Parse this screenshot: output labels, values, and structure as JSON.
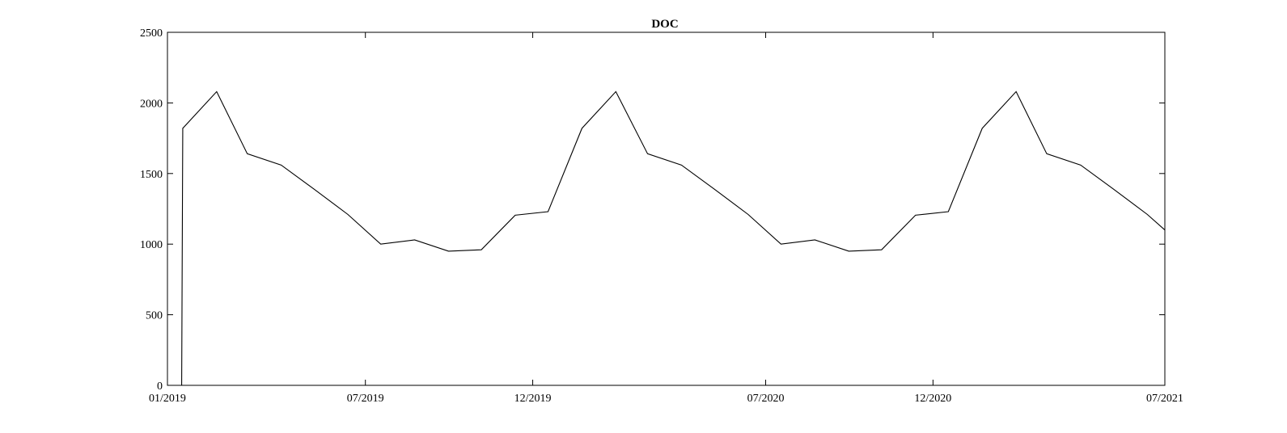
{
  "chart_data": {
    "type": "line",
    "title": "DOC",
    "xlabel": "",
    "ylabel": "",
    "grid": false,
    "ylim": [
      0,
      2500
    ],
    "xlim": [
      "2019-01-01",
      "2021-07-01"
    ],
    "y_ticks": [
      0,
      500,
      1000,
      1500,
      2000,
      2500
    ],
    "x_ticks": [
      {
        "date": "2019-01-01",
        "label": "01/2019"
      },
      {
        "date": "2019-07-01",
        "label": "07/2019"
      },
      {
        "date": "2019-12-01",
        "label": "12/2019"
      },
      {
        "date": "2020-07-01",
        "label": "07/2020"
      },
      {
        "date": "2020-12-01",
        "label": "12/2020"
      },
      {
        "date": "2021-07-01",
        "label": "07/2021"
      }
    ],
    "series": [
      {
        "color": "#000000",
        "points": [
          {
            "x": "2019-01-01",
            "y": 0
          },
          {
            "x": "2019-01-14",
            "y": 0
          },
          {
            "x": "2019-01-15",
            "y": 1820
          },
          {
            "x": "2019-02-15",
            "y": 2080
          },
          {
            "x": "2019-03-15",
            "y": 1640
          },
          {
            "x": "2019-04-15",
            "y": 1560
          },
          {
            "x": "2019-05-15",
            "y": 1390
          },
          {
            "x": "2019-06-15",
            "y": 1210
          },
          {
            "x": "2019-07-15",
            "y": 1000
          },
          {
            "x": "2019-08-15",
            "y": 1030
          },
          {
            "x": "2019-09-15",
            "y": 950
          },
          {
            "x": "2019-10-15",
            "y": 960
          },
          {
            "x": "2019-11-15",
            "y": 1205
          },
          {
            "x": "2019-12-15",
            "y": 1230
          },
          {
            "x": "2020-01-15",
            "y": 1820
          },
          {
            "x": "2020-02-15",
            "y": 2080
          },
          {
            "x": "2020-03-15",
            "y": 1640
          },
          {
            "x": "2020-04-15",
            "y": 1560
          },
          {
            "x": "2020-05-15",
            "y": 1390
          },
          {
            "x": "2020-06-15",
            "y": 1210
          },
          {
            "x": "2020-07-15",
            "y": 1000
          },
          {
            "x": "2020-08-15",
            "y": 1030
          },
          {
            "x": "2020-09-15",
            "y": 950
          },
          {
            "x": "2020-10-15",
            "y": 960
          },
          {
            "x": "2020-11-15",
            "y": 1205
          },
          {
            "x": "2020-12-15",
            "y": 1230
          },
          {
            "x": "2021-01-15",
            "y": 1820
          },
          {
            "x": "2021-02-15",
            "y": 2080
          },
          {
            "x": "2021-03-15",
            "y": 1640
          },
          {
            "x": "2021-04-15",
            "y": 1560
          },
          {
            "x": "2021-05-15",
            "y": 1390
          },
          {
            "x": "2021-06-15",
            "y": 1210
          },
          {
            "x": "2021-07-01",
            "y": 1100
          }
        ]
      }
    ]
  }
}
